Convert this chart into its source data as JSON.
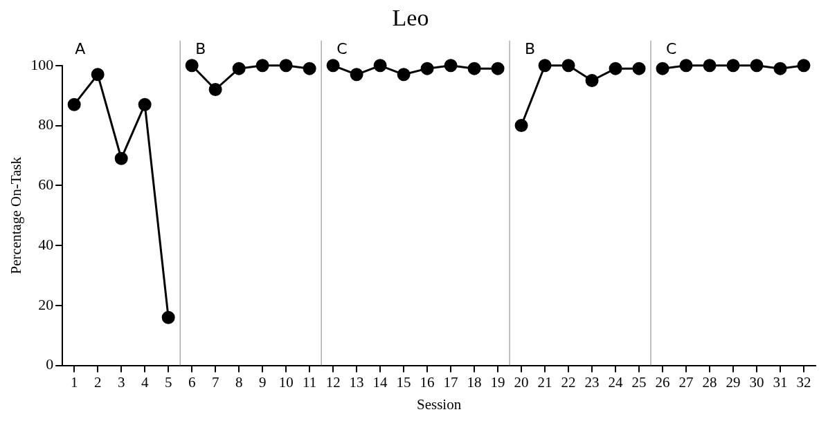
{
  "chart_data": {
    "type": "line",
    "title": "Leo",
    "xlabel": "Session",
    "ylabel": "Percentage On-Task",
    "series": [
      {
        "color": "#000000",
        "x": [
          1,
          2,
          3,
          4,
          5
        ],
        "values": [
          87,
          97,
          69,
          87,
          16
        ]
      },
      {
        "color": "#000000",
        "x": [
          6,
          7,
          8,
          9,
          10,
          11
        ],
        "values": [
          100,
          92,
          99,
          100,
          100,
          99
        ]
      },
      {
        "color": "#000000",
        "x": [
          12,
          13,
          14,
          15,
          16,
          17,
          18,
          19
        ],
        "values": [
          100,
          97,
          100,
          97,
          99,
          100,
          99,
          99
        ]
      },
      {
        "color": "#000000",
        "x": [
          20,
          21,
          22,
          23,
          24,
          25
        ],
        "values": [
          80,
          100,
          100,
          95,
          99,
          99
        ]
      },
      {
        "color": "#000000",
        "x": [
          26,
          27,
          28,
          29,
          30,
          31,
          32
        ],
        "values": [
          99,
          100,
          100,
          100,
          100,
          99,
          100
        ]
      }
    ],
    "xlim": [
      0.5,
      32.5
    ],
    "xticks": [
      1,
      2,
      3,
      4,
      5,
      6,
      7,
      8,
      9,
      10,
      11,
      12,
      13,
      14,
      15,
      16,
      17,
      18,
      19,
      20,
      21,
      22,
      23,
      24,
      25,
      26,
      27,
      28,
      29,
      30,
      31,
      32
    ],
    "ylim": [
      0,
      100
    ],
    "yticks": [
      0,
      20,
      40,
      60,
      80,
      100
    ],
    "ref_lines": [
      {
        "axis": "x",
        "value": 5.5,
        "label": "B",
        "color": "#808080"
      },
      {
        "axis": "x",
        "value": 11.5,
        "label": "C",
        "color": "#808080"
      },
      {
        "axis": "x",
        "value": 19.5,
        "label": "B",
        "color": "#808080"
      },
      {
        "axis": "x",
        "value": 25.5,
        "label": "C",
        "color": "#808080"
      }
    ],
    "annotations": [
      "A"
    ],
    "marker": "circle",
    "line_style": "solid",
    "grid": false,
    "legend": false
  }
}
